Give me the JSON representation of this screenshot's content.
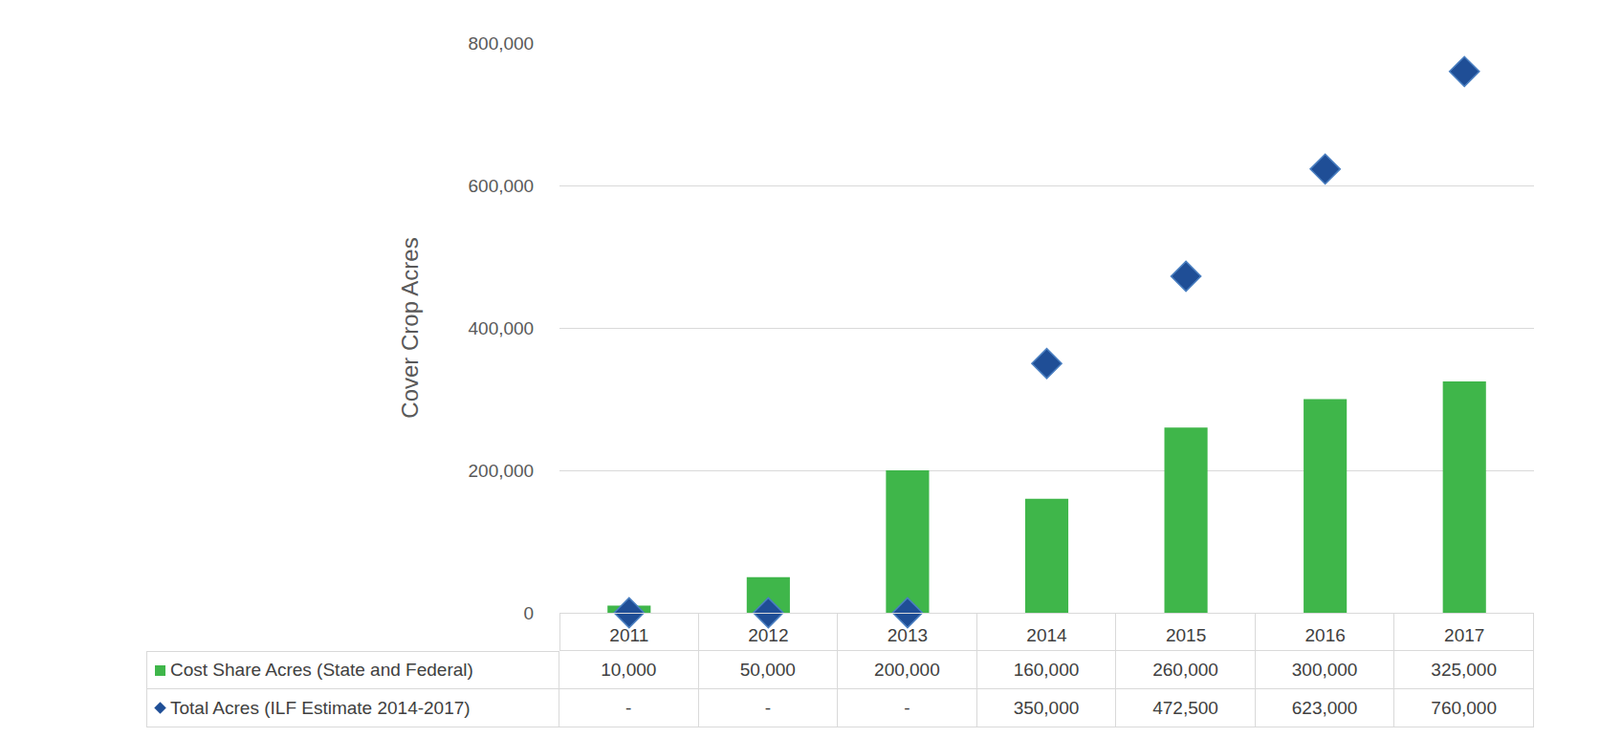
{
  "chart_data": {
    "type": "bar",
    "ylabel": "Cover Crop Acres",
    "categories": [
      "2011",
      "2012",
      "2013",
      "2014",
      "2015",
      "2016",
      "2017"
    ],
    "series": [
      {
        "name": "Cost Share Acres (State and Federal)",
        "type": "bar",
        "color": "#3fb64a",
        "values": [
          10000,
          50000,
          200000,
          160000,
          260000,
          300000,
          325000
        ],
        "value_labels": [
          "10,000",
          "50,000",
          "200,000",
          "160,000",
          "260,000",
          "300,000",
          "325,000"
        ]
      },
      {
        "name": "Total Acres (ILF Estimate 2014-2017)",
        "type": "scatter",
        "marker": "diamond",
        "color": "#1f4e96",
        "values": [
          0,
          0,
          0,
          350000,
          472500,
          623000,
          760000
        ],
        "value_labels": [
          "-",
          "-",
          "-",
          "350,000",
          "472,500",
          "623,000",
          "760,000"
        ]
      }
    ],
    "ylim": [
      0,
      800000
    ],
    "yticks": [
      0,
      {
        "value": 200000,
        "label": "200,000"
      },
      {
        "value": 400000,
        "label": "400,000"
      },
      {
        "value": 600000,
        "label": "600,000"
      },
      {
        "value": 800000,
        "label": "800,000"
      }
    ],
    "grid": true
  }
}
